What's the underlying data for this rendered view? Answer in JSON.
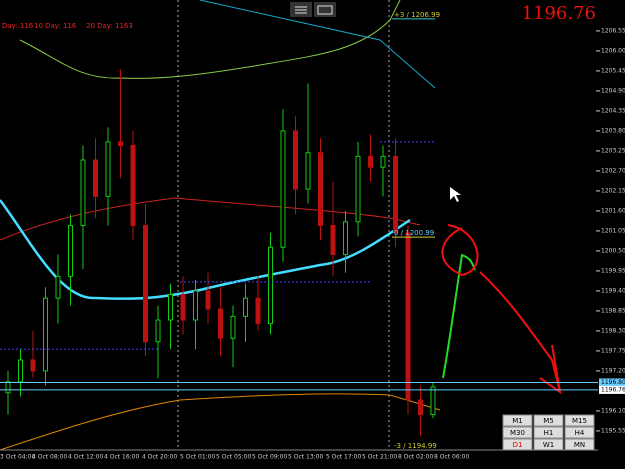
{
  "header": {
    "day_labels": [
      "Day: 116",
      "10 Day: 116",
      "20 Day: 1163"
    ],
    "bid": "1196.76"
  },
  "levels": [
    {
      "label": "+3 / 1206.99",
      "value": 1206.99
    },
    {
      "label": "0 / 1200.99",
      "value": 1200.99
    },
    {
      "label": "-3 / 1194.99",
      "value": 1194.99
    }
  ],
  "price_axis": {
    "ylim": [
      1195.3,
      1207.4
    ],
    "ticks": [
      {
        "value": 1206.55,
        "label": "1206.55"
      },
      {
        "value": 1206,
        "label": "1206.00"
      },
      {
        "value": 1205.45,
        "label": "1205.45"
      },
      {
        "value": 1204.9,
        "label": "1204.90"
      },
      {
        "value": 1204.35,
        "label": "1204.35"
      },
      {
        "value": 1203.8,
        "label": "1203.80"
      },
      {
        "value": 1203.25,
        "label": "1203.25"
      },
      {
        "value": 1202.7,
        "label": "1202.70"
      },
      {
        "value": 1202.15,
        "label": "1202.15"
      },
      {
        "value": 1201.6,
        "label": "1201.60"
      },
      {
        "value": 1201.05,
        "label": "1201.05"
      },
      {
        "value": 1200.5,
        "label": "1200.50"
      },
      {
        "value": 1199.95,
        "label": "1199.95"
      },
      {
        "value": 1199.4,
        "label": "1199.40"
      },
      {
        "value": 1198.85,
        "label": "1198.85"
      },
      {
        "value": 1198.3,
        "label": "1198.30"
      },
      {
        "value": 1197.75,
        "label": "1197.75"
      },
      {
        "value": 1197.2,
        "label": "1197.20"
      },
      {
        "value": 1196.1,
        "label": "1196.10"
      },
      {
        "value": 1195.55,
        "label": "1195.55"
      }
    ],
    "markers": [
      {
        "value": 1196.8,
        "label": "1196.80"
      },
      {
        "value": 1196.76,
        "label": "1196.76"
      }
    ]
  },
  "time_axis": [
    "3 Oct 04:00",
    "4 Oct 08:00",
    "4 Oct 12:00",
    "4 Oct 16:00",
    "4 Oct 20:00",
    "5 Oct 01:00",
    "5 Oct 05:00",
    "5 Oct 09:00",
    "5 Oct 13:00",
    "5 Oct 17:00",
    "5 Oct 21:00",
    "8 Oct 02:00",
    "8 Oct 06:00"
  ],
  "candles": [
    [
      1196.6,
      1197.2,
      1196,
      1196.9
    ],
    [
      1196.9,
      1197.8,
      1196.5,
      1197.5
    ],
    [
      1197.5,
      1198.3,
      1197,
      1197.2
    ],
    [
      1197.2,
      1199.5,
      1196.8,
      1199.2
    ],
    [
      1199.2,
      1200.4,
      1198.5,
      1199.8
    ],
    [
      1199.8,
      1201.5,
      1199,
      1201.2
    ],
    [
      1201.2,
      1203.4,
      1200,
      1203
    ],
    [
      1203,
      1203.6,
      1201.4,
      1202
    ],
    [
      1202,
      1203.9,
      1201.2,
      1203.5
    ],
    [
      1203.5,
      1205.5,
      1202.5,
      1203.4
    ],
    [
      1203.4,
      1203.8,
      1200.8,
      1201.2
    ],
    [
      1201.2,
      1201.8,
      1197.6,
      1198
    ],
    [
      1198,
      1199,
      1197,
      1198.6
    ],
    [
      1198.6,
      1199.6,
      1197.8,
      1199.3
    ],
    [
      1199.3,
      1199.8,
      1198.2,
      1198.6
    ],
    [
      1198.6,
      1199.7,
      1197.8,
      1199.4
    ],
    [
      1199.4,
      1199.9,
      1198.5,
      1198.9
    ],
    [
      1198.9,
      1199.5,
      1197.6,
      1198.1
    ],
    [
      1198.1,
      1199,
      1197.3,
      1198.7
    ],
    [
      1198.7,
      1199.6,
      1198,
      1199.2
    ],
    [
      1199.2,
      1199.8,
      1198.3,
      1198.5
    ],
    [
      1198.5,
      1201,
      1198.2,
      1200.6
    ],
    [
      1200.6,
      1204.4,
      1200.2,
      1203.8
    ],
    [
      1203.8,
      1204.2,
      1201.5,
      1202.2
    ],
    [
      1202.2,
      1205.1,
      1201.8,
      1203.2
    ],
    [
      1203.2,
      1203.6,
      1200.8,
      1201.2
    ],
    [
      1201.2,
      1202.4,
      1199.8,
      1200.4
    ],
    [
      1200.4,
      1201.6,
      1199.9,
      1201.3
    ],
    [
      1201.3,
      1203.5,
      1200.9,
      1203.1
    ],
    [
      1203.1,
      1203.7,
      1202.4,
      1202.8
    ],
    [
      1202.8,
      1203.4,
      1202,
      1203.1
    ],
    [
      1203.1,
      1203.6,
      1200.6,
      1201
    ],
    [
      1201,
      1201.2,
      1196,
      1196.4
    ],
    [
      1196.4,
      1196.8,
      1195.4,
      1196
    ],
    [
      1196,
      1196.9,
      1195.9,
      1196.76
    ]
  ],
  "timeframes": [
    "M1",
    "M5",
    "M15",
    "M30",
    "H1",
    "H4",
    "D1",
    "W1",
    "MN"
  ]
}
